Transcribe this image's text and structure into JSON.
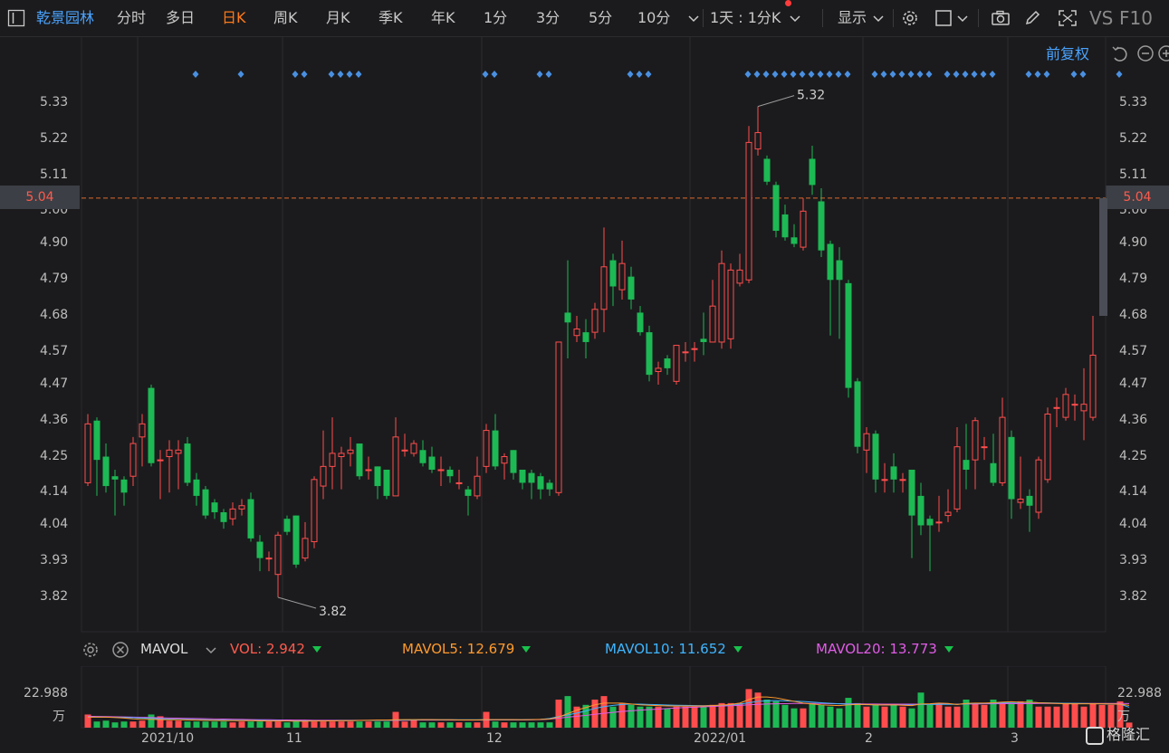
{
  "toolbar": {
    "stock_name": "乾景园林",
    "tabs": [
      "分时",
      "多日",
      "日K",
      "周K",
      "月K",
      "季K",
      "年K",
      "1分",
      "3分",
      "5分",
      "10分"
    ],
    "active_tab": "日K",
    "period_select": "1天 : 1分K",
    "display_label": "显示",
    "vs_label": "VS",
    "f10_label": "F10"
  },
  "adjust_label": "前复权",
  "price_axis": [
    "5.33",
    "5.22",
    "5.11",
    "5.00",
    "4.90",
    "4.79",
    "4.68",
    "4.57",
    "4.47",
    "4.36",
    "4.25",
    "4.14",
    "4.04",
    "3.93",
    "3.82"
  ],
  "current_price": "5.04",
  "high_annotation": "5.32",
  "low_annotation": "3.82",
  "indicator": {
    "name": "MAVOL",
    "vol_label": "VOL:",
    "vol_value": "2.942",
    "ma5_label": "MAVOL5:",
    "ma5_value": "12.679",
    "ma10_label": "MAVOL10:",
    "ma10_value": "11.652",
    "ma20_label": "MAVOL20:",
    "ma20_value": "13.773",
    "colors": {
      "vol": "#ff5b4d",
      "ma5": "#ff9a2e",
      "ma10": "#3fb5ff",
      "ma20": "#e05ce6"
    }
  },
  "volume_axis": {
    "value": "22.988",
    "unit": "万"
  },
  "date_labels": [
    "2021/10",
    "11",
    "12",
    "2022/01",
    "2",
    "3"
  ],
  "colors": {
    "up": "#ff4d4d",
    "down": "#1db954",
    "accent": "#4aa3ff",
    "active": "#ff7a1a"
  },
  "watermark": "格隆汇",
  "chart_data": {
    "type": "candlestick",
    "ylim": [
      3.72,
      5.4
    ],
    "candles": [
      {
        "o": 4.17,
        "c": 4.35,
        "h": 4.38,
        "l": 4.16
      },
      {
        "o": 4.36,
        "c": 4.24,
        "h": 4.37,
        "l": 4.13
      },
      {
        "o": 4.25,
        "c": 4.16,
        "h": 4.29,
        "l": 4.14
      },
      {
        "o": 4.19,
        "c": 4.18,
        "h": 4.21,
        "l": 4.07
      },
      {
        "o": 4.18,
        "c": 4.14,
        "h": 4.19,
        "l": 4.1
      },
      {
        "o": 4.19,
        "c": 4.29,
        "h": 4.31,
        "l": 4.16
      },
      {
        "o": 4.31,
        "c": 4.35,
        "h": 4.38,
        "l": 4.22
      },
      {
        "o": 4.46,
        "c": 4.23,
        "h": 4.47,
        "l": 4.22
      },
      {
        "o": 4.24,
        "c": 4.24,
        "h": 4.27,
        "l": 4.12
      },
      {
        "o": 4.25,
        "c": 4.27,
        "h": 4.3,
        "l": 4.14
      },
      {
        "o": 4.26,
        "c": 4.27,
        "h": 4.3,
        "l": 4.15
      },
      {
        "o": 4.29,
        "c": 4.17,
        "h": 4.31,
        "l": 4.16
      },
      {
        "o": 4.18,
        "c": 4.13,
        "h": 4.2,
        "l": 4.1
      },
      {
        "o": 4.15,
        "c": 4.07,
        "h": 4.16,
        "l": 4.06
      },
      {
        "o": 4.11,
        "c": 4.08,
        "h": 4.12,
        "l": 4.06
      },
      {
        "o": 4.08,
        "c": 4.05,
        "h": 4.09,
        "l": 4.03
      },
      {
        "o": 4.06,
        "c": 4.09,
        "h": 4.11,
        "l": 4.04
      },
      {
        "o": 4.09,
        "c": 4.1,
        "h": 4.12,
        "l": 4.07
      },
      {
        "o": 4.12,
        "c": 4.0,
        "h": 4.14,
        "l": 3.99
      },
      {
        "o": 3.99,
        "c": 3.94,
        "h": 4.01,
        "l": 3.9
      },
      {
        "o": 3.94,
        "c": 3.94,
        "h": 3.96,
        "l": 3.9
      },
      {
        "o": 3.89,
        "c": 4.01,
        "h": 4.02,
        "l": 3.82
      },
      {
        "o": 4.06,
        "c": 4.02,
        "h": 4.07,
        "l": 4.01
      },
      {
        "o": 4.07,
        "c": 3.92,
        "h": 4.07,
        "l": 3.91
      },
      {
        "o": 3.94,
        "c": 4.0,
        "h": 4.05,
        "l": 3.93
      },
      {
        "o": 3.99,
        "c": 4.18,
        "h": 4.19,
        "l": 3.97
      },
      {
        "o": 4.16,
        "c": 4.22,
        "h": 4.33,
        "l": 4.12
      },
      {
        "o": 4.22,
        "c": 4.26,
        "h": 4.37,
        "l": 4.15
      },
      {
        "o": 4.25,
        "c": 4.26,
        "h": 4.28,
        "l": 4.15
      },
      {
        "o": 4.26,
        "c": 4.27,
        "h": 4.31,
        "l": 4.22
      },
      {
        "o": 4.29,
        "c": 4.19,
        "h": 4.29,
        "l": 4.18
      },
      {
        "o": 4.21,
        "c": 4.21,
        "h": 4.25,
        "l": 4.18
      },
      {
        "o": 4.22,
        "c": 4.16,
        "h": 4.22,
        "l": 4.12
      },
      {
        "o": 4.21,
        "c": 4.13,
        "h": 4.21,
        "l": 4.12
      },
      {
        "o": 4.13,
        "c": 4.31,
        "h": 4.37,
        "l": 4.13
      },
      {
        "o": 4.27,
        "c": 4.27,
        "h": 4.32,
        "l": 4.25
      },
      {
        "o": 4.26,
        "c": 4.29,
        "h": 4.3,
        "l": 4.25
      },
      {
        "o": 4.27,
        "c": 4.23,
        "h": 4.3,
        "l": 4.22
      },
      {
        "o": 4.25,
        "c": 4.21,
        "h": 4.28,
        "l": 4.2
      },
      {
        "o": 4.21,
        "c": 4.21,
        "h": 4.25,
        "l": 4.16
      },
      {
        "o": 4.21,
        "c": 4.19,
        "h": 4.22,
        "l": 4.17
      },
      {
        "o": 4.17,
        "c": 4.17,
        "h": 4.21,
        "l": 4.15
      },
      {
        "o": 4.15,
        "c": 4.13,
        "h": 4.16,
        "l": 4.07
      },
      {
        "o": 4.13,
        "c": 4.19,
        "h": 4.25,
        "l": 4.12
      },
      {
        "o": 4.22,
        "c": 4.33,
        "h": 4.35,
        "l": 4.2
      },
      {
        "o": 4.33,
        "c": 4.22,
        "h": 4.38,
        "l": 4.21
      },
      {
        "o": 4.23,
        "c": 4.25,
        "h": 4.26,
        "l": 4.18
      },
      {
        "o": 4.27,
        "c": 4.2,
        "h": 4.27,
        "l": 4.18
      },
      {
        "o": 4.21,
        "c": 4.17,
        "h": 4.21,
        "l": 4.15
      },
      {
        "o": 4.2,
        "c": 4.17,
        "h": 4.21,
        "l": 4.12
      },
      {
        "o": 4.19,
        "c": 4.15,
        "h": 4.2,
        "l": 4.12
      },
      {
        "o": 4.17,
        "c": 4.15,
        "h": 4.18,
        "l": 4.13
      },
      {
        "o": 4.14,
        "c": 4.6,
        "h": 4.6,
        "l": 4.13
      },
      {
        "o": 4.69,
        "c": 4.66,
        "h": 4.85,
        "l": 4.55
      },
      {
        "o": 4.62,
        "c": 4.64,
        "h": 4.68,
        "l": 4.6
      },
      {
        "o": 4.63,
        "c": 4.6,
        "h": 4.67,
        "l": 4.55
      },
      {
        "o": 4.63,
        "c": 4.7,
        "h": 4.72,
        "l": 4.61
      },
      {
        "o": 4.7,
        "c": 4.83,
        "h": 4.95,
        "l": 4.63
      },
      {
        "o": 4.85,
        "c": 4.77,
        "h": 4.87,
        "l": 4.71
      },
      {
        "o": 4.76,
        "c": 4.84,
        "h": 4.91,
        "l": 4.73
      },
      {
        "o": 4.8,
        "c": 4.73,
        "h": 4.83,
        "l": 4.7
      },
      {
        "o": 4.69,
        "c": 4.63,
        "h": 4.71,
        "l": 4.62
      },
      {
        "o": 4.63,
        "c": 4.5,
        "h": 4.65,
        "l": 4.48
      },
      {
        "o": 4.51,
        "c": 4.52,
        "h": 4.54,
        "l": 4.47
      },
      {
        "o": 4.55,
        "c": 4.52,
        "h": 4.56,
        "l": 4.5
      },
      {
        "o": 4.48,
        "c": 4.59,
        "h": 4.59,
        "l": 4.47
      },
      {
        "o": 4.57,
        "c": 4.57,
        "h": 4.6,
        "l": 4.54
      },
      {
        "o": 4.58,
        "c": 4.58,
        "h": 4.6,
        "l": 4.54
      },
      {
        "o": 4.61,
        "c": 4.6,
        "h": 4.69,
        "l": 4.56
      },
      {
        "o": 4.6,
        "c": 4.71,
        "h": 4.79,
        "l": 4.6
      },
      {
        "o": 4.6,
        "c": 4.84,
        "h": 4.88,
        "l": 4.58
      },
      {
        "o": 4.61,
        "c": 4.82,
        "h": 4.84,
        "l": 4.58
      },
      {
        "o": 4.78,
        "c": 4.82,
        "h": 4.87,
        "l": 4.77
      },
      {
        "o": 4.79,
        "c": 5.21,
        "h": 5.26,
        "l": 4.78
      },
      {
        "o": 5.19,
        "c": 5.24,
        "h": 5.32,
        "l": 5.17
      },
      {
        "o": 5.16,
        "c": 5.09,
        "h": 5.17,
        "l": 5.08
      },
      {
        "o": 5.08,
        "c": 4.94,
        "h": 5.09,
        "l": 4.92
      },
      {
        "o": 4.99,
        "c": 4.92,
        "h": 5.02,
        "l": 4.91
      },
      {
        "o": 4.92,
        "c": 4.9,
        "h": 4.96,
        "l": 4.89
      },
      {
        "o": 4.89,
        "c": 5.0,
        "h": 5.04,
        "l": 4.88
      },
      {
        "o": 5.16,
        "c": 5.08,
        "h": 5.2,
        "l": 5.05
      },
      {
        "o": 5.03,
        "c": 4.88,
        "h": 5.07,
        "l": 4.86
      },
      {
        "o": 4.9,
        "c": 4.79,
        "h": 4.91,
        "l": 4.62
      },
      {
        "o": 4.85,
        "c": 4.79,
        "h": 4.89,
        "l": 4.61
      },
      {
        "o": 4.78,
        "c": 4.46,
        "h": 4.79,
        "l": 4.43
      },
      {
        "o": 4.48,
        "c": 4.28,
        "h": 4.49,
        "l": 4.26
      },
      {
        "o": 4.27,
        "c": 4.32,
        "h": 4.34,
        "l": 4.2
      },
      {
        "o": 4.32,
        "c": 4.18,
        "h": 4.33,
        "l": 4.14
      },
      {
        "o": 4.18,
        "c": 4.18,
        "h": 4.23,
        "l": 4.14
      },
      {
        "o": 4.22,
        "c": 4.18,
        "h": 4.26,
        "l": 4.14
      },
      {
        "o": 4.18,
        "c": 4.18,
        "h": 4.2,
        "l": 4.14
      },
      {
        "o": 4.21,
        "c": 4.07,
        "h": 4.21,
        "l": 3.94
      },
      {
        "o": 4.13,
        "c": 4.04,
        "h": 4.17,
        "l": 4.01
      },
      {
        "o": 4.06,
        "c": 4.04,
        "h": 4.07,
        "l": 3.9
      },
      {
        "o": 4.05,
        "c": 4.05,
        "h": 4.13,
        "l": 4.02
      },
      {
        "o": 4.07,
        "c": 4.08,
        "h": 4.15,
        "l": 4.05
      },
      {
        "o": 4.09,
        "c": 4.28,
        "h": 4.34,
        "l": 4.08
      },
      {
        "o": 4.24,
        "c": 4.21,
        "h": 4.35,
        "l": 4.15
      },
      {
        "o": 4.24,
        "c": 4.36,
        "h": 4.37,
        "l": 4.15
      },
      {
        "o": 4.28,
        "c": 4.28,
        "h": 4.31,
        "l": 4.24
      },
      {
        "o": 4.23,
        "c": 4.17,
        "h": 4.32,
        "l": 4.16
      },
      {
        "o": 4.17,
        "c": 4.37,
        "h": 4.43,
        "l": 4.16
      },
      {
        "o": 4.31,
        "c": 4.12,
        "h": 4.33,
        "l": 4.06
      },
      {
        "o": 4.11,
        "c": 4.12,
        "h": 4.25,
        "l": 4.09
      },
      {
        "o": 4.13,
        "c": 4.1,
        "h": 4.15,
        "l": 4.02
      },
      {
        "o": 4.08,
        "c": 4.24,
        "h": 4.25,
        "l": 4.06
      },
      {
        "o": 4.18,
        "c": 4.38,
        "h": 4.4,
        "l": 4.17
      },
      {
        "o": 4.4,
        "c": 4.4,
        "h": 4.43,
        "l": 4.34
      },
      {
        "o": 4.37,
        "c": 4.44,
        "h": 4.46,
        "l": 4.36
      },
      {
        "o": 4.41,
        "c": 4.41,
        "h": 4.44,
        "l": 4.36
      },
      {
        "o": 4.39,
        "c": 4.41,
        "h": 4.52,
        "l": 4.3
      },
      {
        "o": 4.37,
        "c": 4.56,
        "h": 4.68,
        "l": 4.36
      }
    ],
    "live_bar": {
      "from": 4.68,
      "to": 5.04
    },
    "volume_ylim": [
      0,
      32
    ],
    "volume": [
      7.5,
      3.5,
      4,
      3,
      3.5,
      3.5,
      4,
      7.5,
      6.5,
      4,
      4,
      3.5,
      3.5,
      3.5,
      3.5,
      3.5,
      3,
      3.5,
      3.5,
      3.5,
      3.5,
      3.5,
      3,
      3.5,
      3.5,
      3.5,
      3.5,
      3.5,
      3.5,
      3.5,
      3.5,
      3.5,
      3.5,
      3.5,
      9,
      3.5,
      4.5,
      3,
      3,
      3,
      3,
      3,
      3,
      3,
      9,
      3.5,
      3,
      3,
      3,
      3,
      3,
      3,
      16,
      18,
      12,
      13,
      16,
      18,
      12,
      14,
      13,
      12,
      12,
      12,
      11,
      12,
      12,
      12,
      12,
      13,
      14,
      14,
      14,
      22,
      20,
      16,
      15,
      13,
      11,
      11,
      14,
      13,
      12,
      11,
      17,
      14,
      12,
      13,
      12,
      13,
      12,
      11,
      20,
      13,
      14,
      12,
      12,
      16,
      14,
      13,
      16,
      14,
      14,
      15,
      16,
      12,
      12,
      12,
      14,
      14,
      12,
      14,
      13,
      13,
      15,
      2.9
    ],
    "mavol5": [
      6,
      6,
      6,
      5.8,
      5.5,
      5,
      4.8,
      4.8,
      4.6,
      4.5,
      4.5,
      4.4,
      4.3,
      4.2,
      4.1,
      4,
      4,
      4,
      4,
      3.9,
      3.8,
      3.8,
      3.8,
      3.7,
      3.7,
      3.8,
      3.8,
      3.9,
      4,
      4,
      4.1,
      4.2,
      4.3,
      4.3,
      4.5,
      4.6,
      4.6,
      4.6,
      4.6,
      4.5,
      4.5,
      4.4,
      4.4,
      4.4,
      4.6,
      4.6,
      4.6,
      4.6,
      4.5,
      4.6,
      4.7,
      4.9,
      6,
      8,
      10,
      11.5,
      13,
      14,
      14,
      14,
      13.5,
      13,
      12.8,
      12.6,
      12.4,
      12.3,
      12.3,
      12.3,
      12.4,
      12.6,
      12.9,
      13.2,
      14,
      16,
      17.5,
      17.5,
      17,
      16,
      15,
      14,
      13.5,
      13,
      12.8,
      12.6,
      13,
      13.2,
      13.2,
      13,
      13,
      13,
      12.8,
      12.6,
      13.5,
      13.6,
      14,
      13.8,
      13.2,
      13.8,
      14,
      14,
      14.2,
      14.6,
      14.8,
      14.5,
      14.6,
      14.2,
      14,
      13.8,
      13.6,
      13.6,
      13.6,
      13.6,
      13.6,
      13.5,
      13.4,
      12.7
    ],
    "mavol10": [
      6,
      6,
      6,
      5.9,
      5.8,
      5.7,
      5.5,
      5.3,
      5.1,
      4.9,
      4.8,
      4.7,
      4.6,
      4.5,
      4.4,
      4.3,
      4.2,
      4.2,
      4.1,
      4.1,
      4,
      4,
      3.9,
      3.9,
      3.9,
      3.9,
      3.9,
      3.9,
      4,
      4,
      4.1,
      4.1,
      4.2,
      4.2,
      4.3,
      4.4,
      4.4,
      4.5,
      4.5,
      4.5,
      4.5,
      4.5,
      4.5,
      4.5,
      4.5,
      4.5,
      4.5,
      4.5,
      4.5,
      4.6,
      4.7,
      5.2,
      6.3,
      7.3,
      8.3,
      9.5,
      11,
      12,
      12.7,
      13.2,
      13.4,
      13.4,
      13.2,
      13.1,
      12.9,
      12.8,
      12.7,
      12.6,
      12.5,
      12.6,
      12.8,
      13,
      13.4,
      14.2,
      15,
      15.3,
      15.4,
      15.3,
      15.1,
      14.9,
      14.6,
      14.2,
      13.9,
      13.6,
      13.4,
      13.3,
      13.1,
      13,
      12.9,
      12.9,
      12.9,
      13,
      13.2,
      13.2,
      13.3,
      13.3,
      13.3,
      13.6,
      13.8,
      13.9,
      14,
      14.2,
      14.3,
      14.3,
      14.3,
      14.2,
      14.1,
      14,
      13.9,
      13.9,
      13.8,
      13.7,
      13.6,
      13.5,
      13.4,
      11.65
    ],
    "mavol20": [
      6.5,
      6.4,
      6.3,
      6.2,
      6.1,
      6,
      5.9,
      5.8,
      5.6,
      5.5,
      5.4,
      5.3,
      5.2,
      5.1,
      5,
      4.9,
      4.8,
      4.7,
      4.6,
      4.5,
      4.5,
      4.4,
      4.4,
      4.3,
      4.3,
      4.2,
      4.2,
      4.2,
      4.2,
      4.2,
      4.2,
      4.2,
      4.2,
      4.2,
      4.2,
      4.2,
      4.3,
      4.3,
      4.3,
      4.3,
      4.3,
      4.3,
      4.3,
      4.3,
      4.3,
      4.4,
      4.4,
      4.4,
      4.4,
      4.5,
      4.6,
      4.9,
      5.4,
      6,
      6.5,
      7,
      7.6,
      8.2,
      8.7,
      9.2,
      9.6,
      10,
      10.3,
      10.6,
      10.9,
      11.2,
      11.5,
      11.7,
      11.9,
      12.1,
      12.3,
      12.5,
      12.7,
      13,
      13.3,
      13.5,
      13.6,
      13.7,
      13.8,
      13.8,
      13.8,
      13.8,
      13.7,
      13.7,
      13.6,
      13.6,
      13.5,
      13.5,
      13.4,
      13.4,
      13.4,
      13.4,
      13.4,
      13.4,
      13.4,
      13.4,
      13.4,
      13.5,
      13.5,
      13.6,
      13.6,
      13.7,
      13.7,
      13.7,
      13.7,
      13.8,
      13.8,
      13.8,
      13.8,
      13.8,
      13.8,
      13.8,
      13.8,
      13.8,
      13.8,
      13.77
    ],
    "event_markers": [
      6,
      11,
      17,
      18,
      21,
      22,
      23,
      24,
      38,
      39,
      44,
      45,
      54,
      55,
      56,
      67,
      68,
      69,
      70,
      71,
      72,
      73,
      74,
      75,
      76,
      77,
      78,
      81,
      82,
      83,
      84,
      85,
      86,
      87,
      89,
      90,
      91,
      92,
      93,
      94,
      98,
      99,
      100,
      103,
      104,
      108
    ]
  }
}
